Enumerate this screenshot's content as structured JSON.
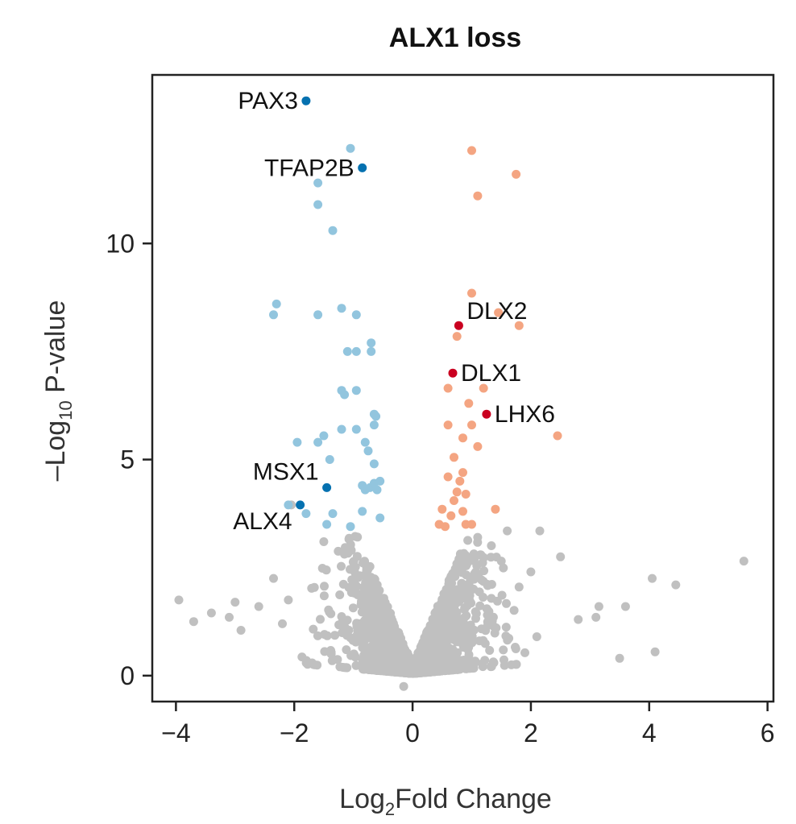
{
  "chart_data": {
    "type": "scatter",
    "title": "ALX1 loss",
    "xlabel": {
      "prefix": "Log",
      "sub": "2",
      "suffix": "Fold Change"
    },
    "ylabel": {
      "prefix": "–Log",
      "sub": "10",
      "suffix": " P-value"
    },
    "xlim": [
      -4.4,
      6.1
    ],
    "ylim": [
      -0.6,
      13.9
    ],
    "x_ticks": [
      -4,
      -2,
      0,
      2,
      4,
      6
    ],
    "y_ticks": [
      0,
      5,
      10
    ],
    "grid": false,
    "colors": {
      "not_significant": "#c0c0c0",
      "down": "#92c5de",
      "up": "#f4a582",
      "highlight_down": "#0571b0",
      "highlight_up": "#ca0020"
    },
    "series": [
      {
        "group": "down",
        "points": [
          [
            -1.05,
            12.2
          ],
          [
            -1.6,
            11.4
          ],
          [
            -1.6,
            10.9
          ],
          [
            -1.35,
            10.3
          ],
          [
            -2.3,
            8.6
          ],
          [
            -2.35,
            8.35
          ],
          [
            -1.6,
            8.35
          ],
          [
            -1.2,
            8.5
          ],
          [
            -0.95,
            8.35
          ],
          [
            -1.1,
            7.5
          ],
          [
            -0.95,
            7.5
          ],
          [
            -0.7,
            7.7
          ],
          [
            -0.7,
            7.5
          ],
          [
            -1.2,
            6.6
          ],
          [
            -1.15,
            6.5
          ],
          [
            -0.95,
            6.6
          ],
          [
            -0.65,
            6.05
          ],
          [
            -0.62,
            6.0
          ],
          [
            -1.2,
            5.7
          ],
          [
            -0.95,
            5.7
          ],
          [
            -0.65,
            5.8
          ],
          [
            -1.5,
            5.55
          ],
          [
            -1.6,
            5.4
          ],
          [
            -1.95,
            5.4
          ],
          [
            -0.8,
            5.4
          ],
          [
            -0.75,
            5.2
          ],
          [
            -1.4,
            5.0
          ],
          [
            -0.65,
            4.9
          ],
          [
            -0.85,
            4.4
          ],
          [
            -0.8,
            4.3
          ],
          [
            -0.72,
            4.35
          ],
          [
            -0.65,
            4.45
          ],
          [
            -0.6,
            4.3
          ],
          [
            -0.55,
            4.5
          ],
          [
            -2.1,
            3.95
          ],
          [
            -1.8,
            3.75
          ],
          [
            -1.35,
            3.75
          ],
          [
            -1.45,
            3.5
          ],
          [
            -1.05,
            3.45
          ],
          [
            -0.85,
            3.8
          ],
          [
            -0.55,
            3.65
          ]
        ]
      },
      {
        "group": "up",
        "points": [
          [
            1.0,
            12.15
          ],
          [
            1.75,
            11.6
          ],
          [
            1.1,
            11.1
          ],
          [
            1.0,
            8.85
          ],
          [
            1.45,
            8.4
          ],
          [
            1.8,
            8.1
          ],
          [
            0.75,
            7.85
          ],
          [
            0.6,
            6.65
          ],
          [
            1.2,
            6.65
          ],
          [
            0.95,
            6.3
          ],
          [
            1.0,
            5.8
          ],
          [
            0.6,
            5.8
          ],
          [
            0.85,
            5.5
          ],
          [
            1.1,
            5.3
          ],
          [
            2.45,
            5.55
          ],
          [
            0.7,
            5.05
          ],
          [
            0.85,
            4.7
          ],
          [
            0.6,
            4.6
          ],
          [
            0.8,
            4.5
          ],
          [
            0.75,
            4.25
          ],
          [
            0.9,
            4.2
          ],
          [
            0.7,
            4.05
          ],
          [
            0.5,
            3.85
          ],
          [
            0.85,
            3.8
          ],
          [
            1.4,
            3.85
          ],
          [
            0.65,
            3.7
          ],
          [
            0.45,
            3.5
          ],
          [
            0.55,
            3.45
          ],
          [
            0.9,
            3.5
          ],
          [
            1.0,
            3.5
          ]
        ]
      },
      {
        "group": "highlight",
        "points": [
          {
            "gene": "PAX3",
            "x": -1.8,
            "y": 13.3,
            "color": "#0571b0",
            "label_anchor": "end"
          },
          {
            "gene": "TFAP2B",
            "x": -0.85,
            "y": 11.75,
            "color": "#0571b0",
            "label_anchor": "end"
          },
          {
            "gene": "MSX1",
            "x": -1.45,
            "y": 4.35,
            "color": "#0571b0",
            "label_anchor": "end"
          },
          {
            "gene": "ALX4",
            "x": -1.9,
            "y": 3.95,
            "color": "#0571b0",
            "label_anchor": "end"
          },
          {
            "gene": "DLX2",
            "x": 0.78,
            "y": 8.1,
            "color": "#ca0020",
            "label_anchor": "start"
          },
          {
            "gene": "DLX1",
            "x": 0.68,
            "y": 7.0,
            "color": "#ca0020",
            "label_anchor": "start"
          },
          {
            "gene": "LHX6",
            "x": 1.25,
            "y": 6.05,
            "color": "#ca0020",
            "label_anchor": "start"
          }
        ]
      }
    ],
    "not_significant_outliers": [
      [
        5.6,
        2.65
      ],
      [
        4.45,
        2.1
      ],
      [
        4.05,
        2.25
      ],
      [
        4.1,
        0.55
      ],
      [
        3.5,
        0.4
      ],
      [
        3.6,
        1.6
      ],
      [
        3.15,
        1.6
      ],
      [
        3.1,
        1.35
      ],
      [
        2.8,
        1.3
      ],
      [
        2.5,
        2.75
      ],
      [
        2.15,
        3.35
      ],
      [
        2.0,
        2.4
      ],
      [
        1.8,
        2.05
      ],
      [
        1.5,
        2.65
      ],
      [
        1.6,
        3.35
      ],
      [
        1.1,
        3.2
      ],
      [
        2.1,
        0.9
      ],
      [
        -3.95,
        1.75
      ],
      [
        -3.7,
        1.25
      ],
      [
        -3.4,
        1.45
      ],
      [
        -3.1,
        1.35
      ],
      [
        -3.0,
        1.7
      ],
      [
        -2.9,
        1.05
      ],
      [
        -2.6,
        1.6
      ],
      [
        -2.35,
        2.25
      ],
      [
        -2.2,
        1.2
      ],
      [
        -2.1,
        1.75
      ],
      [
        -2.05,
        3.95
      ],
      [
        -1.5,
        3.1
      ],
      [
        -0.15,
        -0.25
      ]
    ],
    "not_significant_cloud": {
      "count": 1400,
      "x_range": [
        -1.9,
        1.9
      ],
      "note": "dense V-shaped cloud near x=0, y from 0 to ~3.3"
    }
  }
}
